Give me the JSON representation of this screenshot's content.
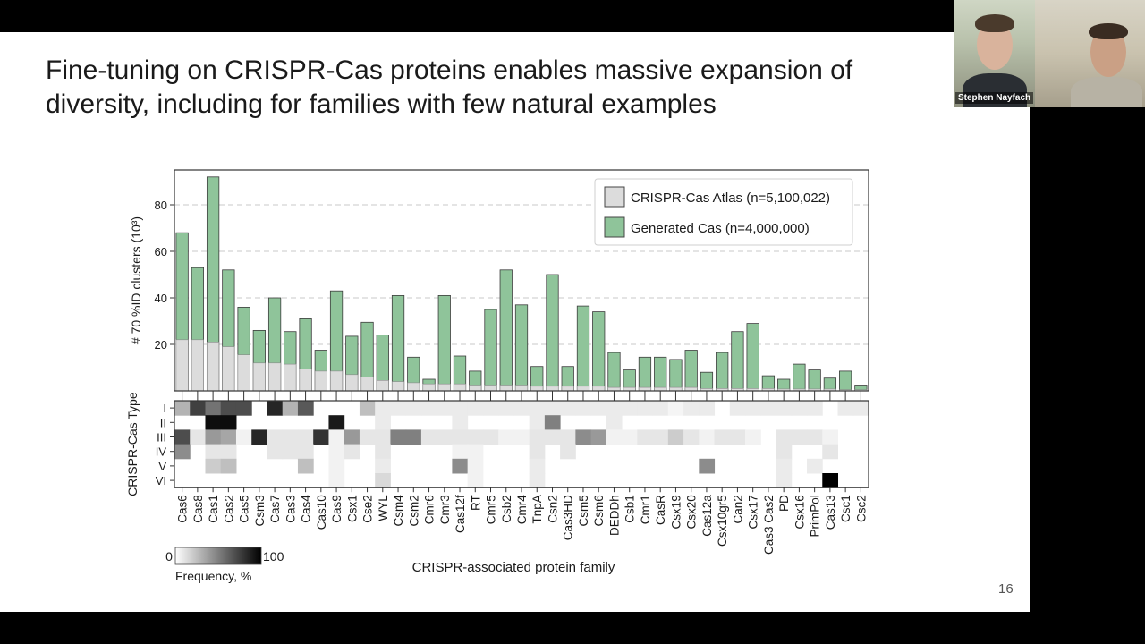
{
  "slide": {
    "title_line1": "Fine-tuning on CRISPR-Cas proteins enables massive expansion of",
    "title_line2": "diversity, including for families with few natural examples",
    "page_number": "16"
  },
  "video_call": {
    "participant_name": "Stephen Nayfach"
  },
  "chart_data": [
    {
      "type": "bar",
      "stacking": "overlay",
      "ylabel": "# 70 %ID clusters (10³)",
      "ylim": [
        0,
        95
      ],
      "yticks": [
        20,
        40,
        60,
        80
      ],
      "grid": "horizontal dashed",
      "legend_position": "top-right",
      "categories": [
        "Cas6",
        "Cas8",
        "Cas1",
        "Cas2",
        "Cas5",
        "Csm3",
        "Cas7",
        "Cas3",
        "Cas4",
        "Cas10",
        "Cas9",
        "Csx1",
        "Cse2",
        "WYL",
        "Csm4",
        "Csm2",
        "Cmr6",
        "Cmr3",
        "Cas12f",
        "RT",
        "Cmr5",
        "Csb2",
        "Cmr4",
        "TnpA",
        "Csn2",
        "Cas3HD",
        "Csm5",
        "Csm6",
        "DEDDh",
        "Csb1",
        "Cmr1",
        "CasR",
        "Csx19",
        "Csx20",
        "Cas12a",
        "Csx10gr5",
        "Can2",
        "Csx17",
        "Cas3 Cas2",
        "PD",
        "Csx16",
        "PrimPol",
        "Cas13",
        "Csc1",
        "Csc2"
      ],
      "series": [
        {
          "name": "CRISPR-Cas Atlas (n=5,100,022)",
          "color": "#dcdcdc",
          "values": [
            22,
            22,
            21,
            19,
            15.5,
            12,
            12,
            11.5,
            9.5,
            8.5,
            8.5,
            7,
            6,
            4.5,
            4,
            3.5,
            3,
            3,
            3,
            2.5,
            2.5,
            2.5,
            2.5,
            2,
            2,
            2,
            2,
            2,
            1.5,
            1.5,
            1.5,
            1.5,
            1.5,
            1.5,
            1,
            1,
            1,
            1,
            1,
            0.8,
            0.8,
            0.8,
            0.8,
            0.5,
            0.5
          ]
        },
        {
          "name": "Generated Cas (n=4,000,000)",
          "color": "#8fc49a",
          "values": [
            68,
            53,
            92,
            52,
            36,
            26,
            40,
            25.5,
            31,
            17.5,
            43,
            23.5,
            29.5,
            24,
            41,
            14.5,
            5,
            41,
            15,
            8.5,
            35,
            52,
            37,
            10.5,
            50,
            10.5,
            36.5,
            34,
            16.5,
            9,
            14.5,
            14.5,
            13.5,
            17.5,
            8,
            16.5,
            25.5,
            29,
            6.5,
            5,
            11.5,
            9,
            5.5,
            8.5,
            2.5
          ]
        }
      ]
    },
    {
      "type": "heatmap",
      "ylabel": "CRISPR-Cas Type",
      "xlabel": "CRISPR-associated protein family",
      "rows": [
        "I",
        "II",
        "III",
        "IV",
        "V",
        "VI"
      ],
      "colorbar": {
        "min_label": "0",
        "max_label": "100",
        "label": "Frequency, %"
      },
      "frequency_percent": [
        [
          30,
          75,
          55,
          70,
          70,
          0,
          85,
          30,
          65,
          0,
          0,
          0,
          25,
          8,
          8,
          8,
          8,
          8,
          8,
          8,
          8,
          8,
          8,
          8,
          8,
          8,
          8,
          8,
          8,
          8,
          8,
          8,
          4,
          8,
          8,
          0,
          8,
          8,
          8,
          8,
          8,
          8,
          0,
          8,
          8
        ],
        [
          0,
          0,
          95,
          95,
          0,
          0,
          0,
          0,
          0,
          0,
          90,
          0,
          0,
          8,
          0,
          0,
          0,
          0,
          8,
          0,
          0,
          0,
          0,
          8,
          50,
          0,
          0,
          0,
          8,
          0,
          0,
          0,
          0,
          0,
          0,
          0,
          0,
          0,
          0,
          0,
          0,
          0,
          0,
          0,
          0
        ],
        [
          70,
          10,
          40,
          35,
          5,
          85,
          10,
          10,
          10,
          80,
          5,
          40,
          10,
          10,
          50,
          50,
          10,
          10,
          10,
          10,
          10,
          5,
          5,
          10,
          10,
          10,
          45,
          40,
          5,
          5,
          10,
          10,
          20,
          10,
          5,
          10,
          10,
          5,
          0,
          10,
          10,
          10,
          5,
          0,
          0
        ],
        [
          45,
          0,
          10,
          10,
          0,
          0,
          10,
          10,
          10,
          0,
          5,
          10,
          0,
          10,
          0,
          0,
          0,
          0,
          5,
          5,
          0,
          0,
          0,
          10,
          0,
          10,
          0,
          0,
          0,
          0,
          0,
          0,
          0,
          0,
          0,
          0,
          0,
          0,
          0,
          10,
          0,
          0,
          10,
          0,
          0
        ],
        [
          0,
          0,
          20,
          25,
          0,
          0,
          0,
          0,
          25,
          0,
          5,
          0,
          0,
          8,
          0,
          0,
          0,
          0,
          45,
          5,
          0,
          0,
          0,
          8,
          0,
          0,
          0,
          0,
          0,
          0,
          0,
          0,
          0,
          0,
          45,
          0,
          0,
          0,
          0,
          8,
          0,
          8,
          0,
          0,
          0
        ],
        [
          0,
          0,
          0,
          0,
          0,
          0,
          0,
          0,
          0,
          0,
          5,
          0,
          0,
          15,
          0,
          0,
          0,
          0,
          0,
          5,
          0,
          0,
          0,
          8,
          0,
          0,
          0,
          0,
          0,
          0,
          0,
          0,
          0,
          0,
          0,
          0,
          0,
          0,
          0,
          8,
          0,
          0,
          100,
          0,
          0
        ]
      ]
    }
  ]
}
